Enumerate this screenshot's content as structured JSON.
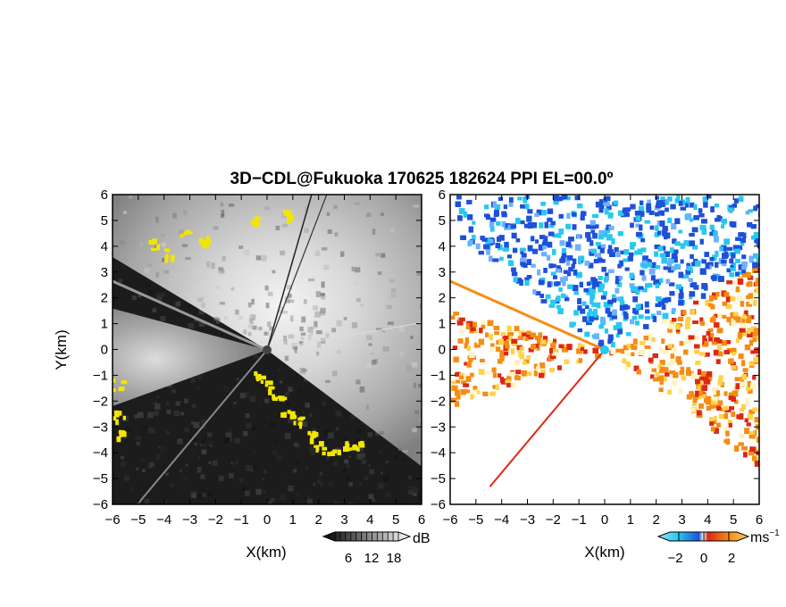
{
  "title": "3D−CDL@Fukuoka 170625 182624 PPI EL=00.0º",
  "panels": [
    {
      "id": "reflectivity",
      "colormap": "grayscale with yellow saturation"
    },
    {
      "id": "doppler-velocity",
      "colormap": "blue-cyan / orange-red diverging"
    }
  ],
  "axes": {
    "xlabel": "X(km)",
    "ylabel": "Y(km)",
    "xlim": [
      -6,
      6
    ],
    "ylim": [
      -6,
      6
    ],
    "ticks": [
      "−6",
      "−5",
      "−4",
      "−3",
      "−2",
      "−1",
      "0",
      "1",
      "2",
      "3",
      "4",
      "5",
      "6"
    ],
    "grid": false
  },
  "colorbars": [
    {
      "unit": "dB",
      "ticks": [
        "6",
        "12",
        "18"
      ],
      "values": [
        6,
        12,
        18
      ],
      "range": [
        0,
        24
      ]
    },
    {
      "unit": "ms",
      "unit_sup": "−1",
      "ticks": [
        "−2",
        "0",
        "2"
      ],
      "values": [
        -2,
        0,
        2
      ],
      "range": [
        -3.5,
        3.5
      ]
    }
  ],
  "chart_data": [
    {
      "type": "heatmap",
      "title": "3D−CDL@Fukuoka 170625 182624 PPI EL=00.0º",
      "quantity": "reflectivity",
      "xlabel": "X(km)",
      "ylabel": "Y(km)",
      "xlim": [
        -6,
        6
      ],
      "ylim": [
        -6,
        6
      ],
      "colorbar": {
        "unit": "dB",
        "ticks": [
          6,
          12,
          18
        ]
      },
      "sectors_deg_math": [
        {
          "from": -37,
          "to": 149,
          "level": "high"
        },
        {
          "from": 149,
          "to": 165,
          "level": "blocked"
        },
        {
          "from": 165,
          "to": 200,
          "level": "medium"
        },
        {
          "from": 200,
          "to": 323,
          "level": "blocked"
        }
      ],
      "max_range_km": 6
    },
    {
      "type": "heatmap",
      "quantity": "doppler velocity",
      "xlabel": "X(km)",
      "xlim": [
        -6,
        6
      ],
      "ylim": [
        -6,
        6
      ],
      "colorbar": {
        "unit": "ms⁻¹",
        "ticks": [
          -2,
          0,
          2
        ]
      },
      "sectors_deg_math": [
        {
          "from": 30,
          "to": 142,
          "velocity": "negative"
        },
        {
          "from": -37,
          "to": 30,
          "velocity": "positive"
        },
        {
          "from": 165,
          "to": 200,
          "velocity": "positive"
        }
      ],
      "max_range_km": 6
    }
  ],
  "colors": {
    "yellow": "#f2e600",
    "blue": "#1e50d8",
    "cyan": "#28c8f0",
    "orange": "#f58c14",
    "red": "#dc2814"
  }
}
